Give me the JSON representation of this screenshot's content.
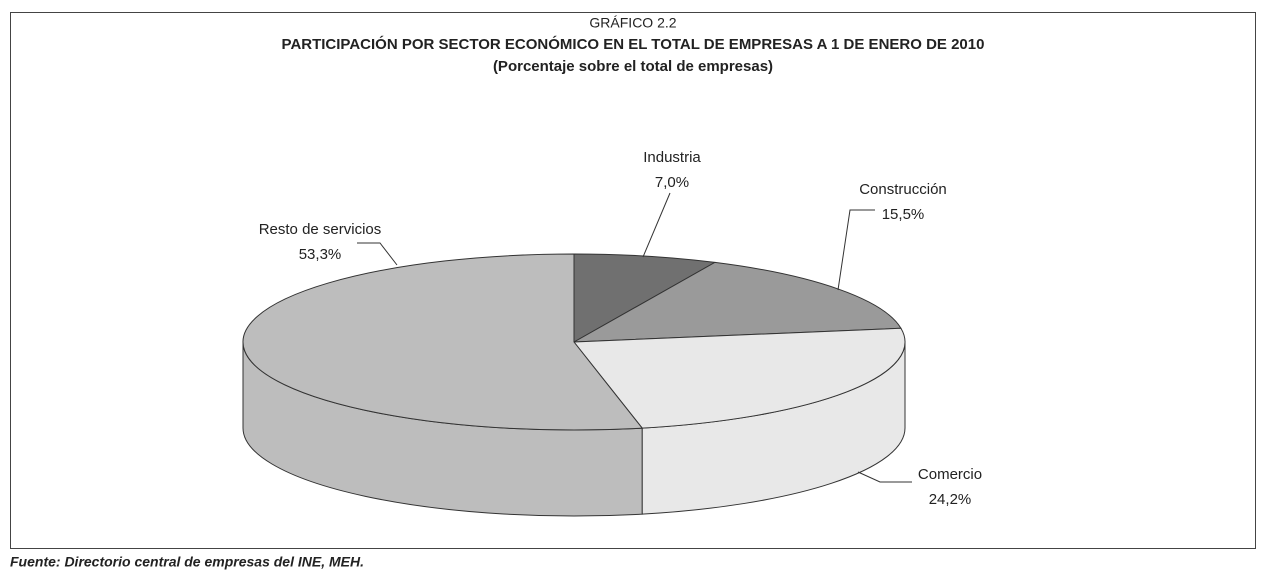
{
  "chart_data": {
    "type": "pie3d",
    "label": "GRÁFICO 2.2",
    "title": "PARTICIPACIÓN POR SECTOR ECONÓMICO EN EL TOTAL DE EMPRESAS A 1 DE ENERO DE 2010",
    "subtitle": "(Porcentaje sobre el total de empresas)",
    "categories": [
      "Industria",
      "Construcción",
      "Comercio",
      "Resto de servicios"
    ],
    "values": [
      7.0,
      15.5,
      24.2,
      53.3
    ],
    "value_labels": [
      "7,0%",
      "15,5%",
      "24,2%",
      "53,3%"
    ],
    "colors": [
      "#707070",
      "#9a9a9a",
      "#e8e8e8",
      "#bdbdbd"
    ],
    "source": "Fuente: Directorio central de empresas del INE, MEH."
  }
}
